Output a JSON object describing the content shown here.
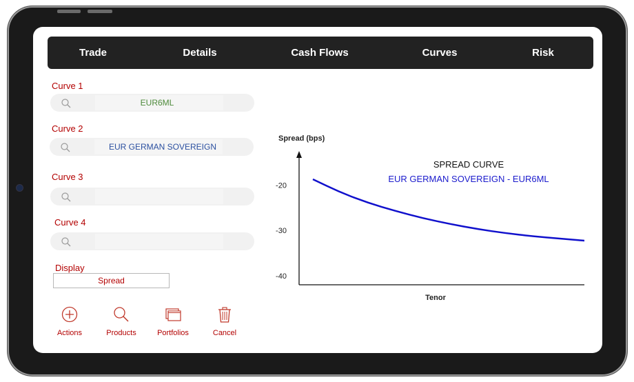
{
  "nav": {
    "tabs": [
      "Trade",
      "Details",
      "Cash Flows",
      "Curves",
      "Risk"
    ]
  },
  "form": {
    "curve1": {
      "label": "Curve 1",
      "value": "EUR6ML"
    },
    "curve2": {
      "label": "Curve 2",
      "value": "EUR GERMAN SOVEREIGN"
    },
    "curve3": {
      "label": "Curve 3",
      "value": ""
    },
    "curve4": {
      "label": "Curve 4",
      "value": ""
    },
    "display": {
      "label": "Display",
      "value": "Spread"
    }
  },
  "actions": [
    {
      "label": "Actions",
      "icon": "plus-circle-icon"
    },
    {
      "label": "Products",
      "icon": "magnifier-icon"
    },
    {
      "label": "Portfolios",
      "icon": "stacked-windows-icon"
    },
    {
      "label": "Cancel",
      "icon": "trash-icon"
    }
  ],
  "colors": {
    "nav_bg": "#222222",
    "label": "#b30000",
    "curve1_text": "#4d8a3a",
    "curve2_text": "#2a4fa0",
    "curve_line": "#1010cc"
  },
  "chart_data": {
    "type": "line",
    "title": "SPREAD CURVE",
    "subtitle": "EUR GERMAN SOVEREIGN - EUR6ML",
    "xlabel": "Tenor",
    "ylabel": "Spread (bps)",
    "yticks": [
      -20,
      -30,
      -40
    ],
    "ylim": [
      -42,
      -12
    ],
    "xlim": [
      0,
      1
    ],
    "series": [
      {
        "values": [
          {
            "x": 0.0,
            "y": -18.7
          },
          {
            "x": 0.1,
            "y": -21.6
          },
          {
            "x": 0.2,
            "y": -23.9
          },
          {
            "x": 0.3,
            "y": -25.7
          },
          {
            "x": 0.4,
            "y": -27.3
          },
          {
            "x": 0.5,
            "y": -28.6
          },
          {
            "x": 0.6,
            "y": -29.7
          },
          {
            "x": 0.7,
            "y": -30.6
          },
          {
            "x": 0.8,
            "y": -31.3
          },
          {
            "x": 0.9,
            "y": -31.8
          },
          {
            "x": 1.0,
            "y": -32.3
          }
        ]
      }
    ]
  }
}
